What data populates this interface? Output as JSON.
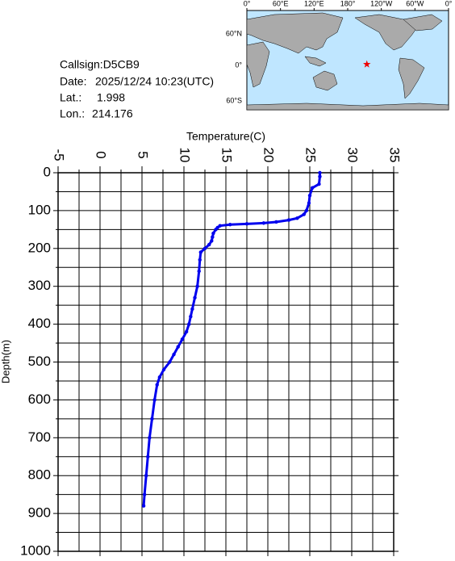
{
  "chart_data": {
    "type": "line",
    "x_label": "Temperature(C)",
    "y_label": "Depth(m)",
    "xlim": [
      -5,
      35
    ],
    "xticks": [
      -5,
      0,
      5,
      10,
      15,
      20,
      25,
      30,
      35
    ],
    "xminor": [
      -2.5,
      2.5,
      7.5,
      12.5,
      17.5,
      22.5,
      27.5,
      32.5
    ],
    "ylim": [
      0,
      1000
    ],
    "yticks": [
      0,
      100,
      200,
      300,
      400,
      500,
      600,
      700,
      800,
      900,
      1000
    ],
    "yminor": [
      50,
      150,
      250,
      350,
      450,
      550,
      650,
      750,
      850,
      950
    ],
    "inverted_y": true,
    "grid": true,
    "x": [
      26.2,
      26.2,
      26.1,
      25.3,
      25.0,
      24.9,
      24.6,
      24.3,
      23.5,
      22.5,
      21.0,
      19.5,
      17.5,
      15.5,
      14.3,
      14.0,
      13.8,
      13.5,
      13.4,
      13.3,
      13.0,
      12.5,
      12.0,
      11.9,
      11.8,
      11.6,
      11.3,
      11.0,
      10.8,
      10.6,
      10.3,
      9.8,
      9.3,
      8.8,
      8.3,
      7.6,
      7.1,
      6.8,
      6.5,
      6.2,
      5.9,
      5.7,
      5.5,
      5.3,
      5.2
    ],
    "series": [
      {
        "color": "#0000ee",
        "values": [
          0,
          10,
          30,
          40,
          60,
          80,
          100,
          110,
          120,
          125,
          130,
          133,
          135,
          137,
          140,
          145,
          150,
          160,
          170,
          180,
          190,
          200,
          210,
          230,
          260,
          300,
          330,
          360,
          380,
          400,
          420,
          440,
          460,
          480,
          500,
          520,
          540,
          560,
          600,
          650,
          700,
          750,
          800,
          850,
          880
        ]
      }
    ]
  },
  "info": {
    "callsign": "Callsign:D5CB9",
    "date_label": "Date:",
    "date": "2025/12/24 10:23(UTC)",
    "lat_label": "Lat.:",
    "lat": 1.998,
    "lon_label": "Lon.:",
    "lon": 214.176
  },
  "map": {
    "lon_labels": [
      "0°",
      "60°E",
      "120°E",
      "180°",
      "120°W",
      "60°W",
      "0°"
    ],
    "lat_labels": [
      "60°N",
      "0°",
      "60°S"
    ],
    "marker_color": "#ee0000"
  }
}
